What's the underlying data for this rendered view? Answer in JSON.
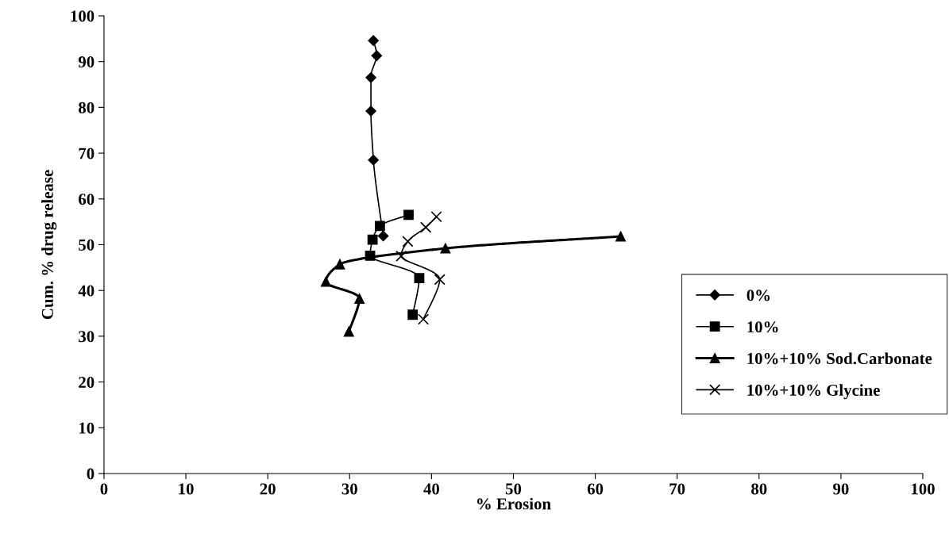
{
  "chart_data": {
    "type": "line",
    "xlabel": "% Erosion",
    "ylabel": "Cum. % drug release",
    "xlim": [
      0,
      100
    ],
    "ylim": [
      0,
      100
    ],
    "xticks": [
      0,
      10,
      20,
      30,
      40,
      50,
      60,
      70,
      80,
      90,
      100
    ],
    "yticks": [
      0,
      10,
      20,
      30,
      40,
      50,
      60,
      70,
      80,
      90,
      100
    ],
    "grid": false,
    "legend": "bottom right",
    "line_style": "solid",
    "series": [
      {
        "name": "0%",
        "color": "#000000",
        "marker": "diamond",
        "x": [
          34.1,
          32.9,
          32.6,
          32.6,
          33.3,
          32.9
        ],
        "values": [
          51.9,
          68.5,
          79.2,
          86.5,
          91.3,
          94.6
        ]
      },
      {
        "name": "10%",
        "color": "#000000",
        "marker": "square",
        "x": [
          37.7,
          38.5,
          32.5,
          32.8,
          33.7,
          37.2
        ],
        "values": [
          34.7,
          42.7,
          47.6,
          51.1,
          54.1,
          56.5
        ]
      },
      {
        "name": "10%+10% Sod.Carbonate",
        "color": "#000000",
        "marker": "triangle",
        "x": [
          29.9,
          31.2,
          27.1,
          28.8,
          41.7,
          63.1
        ],
        "values": [
          31.0,
          38.2,
          41.9,
          45.7,
          49.2,
          51.8
        ]
      },
      {
        "name": "10%+10% Glycine",
        "color": "#000000",
        "marker": "cross",
        "x": [
          39.0,
          41.0,
          36.3,
          37.1,
          39.3,
          40.6
        ],
        "values": [
          33.7,
          42.4,
          47.5,
          50.7,
          53.8,
          56.1
        ]
      }
    ]
  }
}
